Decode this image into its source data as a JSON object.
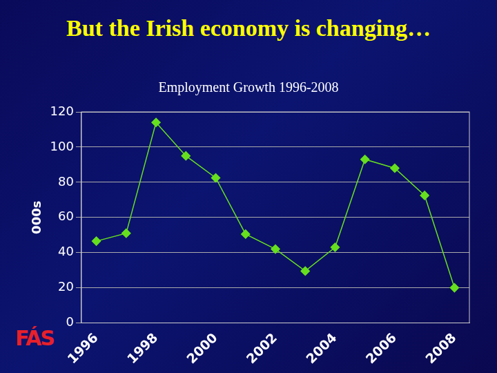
{
  "header": {
    "title": "But the Irish economy is changing…",
    "logo": "FÁS"
  },
  "chart_data": {
    "type": "line",
    "title": "Employment Growth 1996-2008",
    "y_label": "000s",
    "categories": [
      "1996",
      null,
      "1998",
      null,
      "2000",
      null,
      "2002",
      null,
      "2004",
      null,
      "2006",
      null,
      "2008"
    ],
    "values": [
      46.5,
      51,
      114,
      95,
      82.5,
      50.5,
      42,
      29.5,
      43,
      93,
      88,
      72.5,
      20
    ],
    "color": "#66e01e",
    "marker": "diamond",
    "ylim": [
      0,
      120
    ],
    "yticks": [
      0,
      20,
      40,
      60,
      80,
      100,
      120
    ],
    "grid": true
  }
}
